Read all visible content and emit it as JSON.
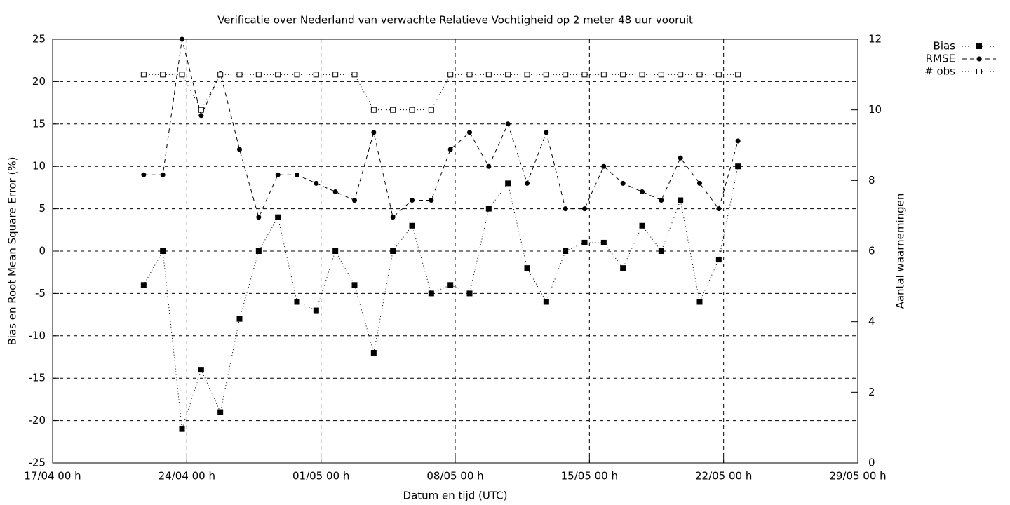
{
  "chart_data": {
    "type": "line",
    "title": "Verificatie over Nederland van verwachte Relatieve Vochtigheid op 2 meter 48 uur vooruit",
    "x_label": "Datum en tijd (UTC)",
    "y_label": "Bias en Root Mean Square Error (%)",
    "y2_label": "Aantal waarnemingen",
    "x": [
      "21/04 18 h",
      "22/04 18 h",
      "23/04 18 h",
      "24/04 18 h",
      "25/04 18 h",
      "26/04 18 h",
      "27/04 18 h",
      "28/04 18 h",
      "29/04 18 h",
      "30/04 18 h",
      "01/05 18 h",
      "02/05 18 h",
      "03/05 18 h",
      "04/05 18 h",
      "05/05 18 h",
      "06/05 18 h",
      "07/05 18 h",
      "08/05 18 h",
      "09/05 18 h",
      "10/05 18 h",
      "11/05 18 h",
      "12/05 18 h",
      "13/05 18 h",
      "14/05 18 h",
      "15/05 18 h",
      "16/05 18 h",
      "17/05 18 h",
      "18/05 18 h",
      "19/05 18 h",
      "20/05 18 h",
      "21/05 18 h",
      "22/05 18 h"
    ],
    "series": [
      {
        "name": "Bias",
        "color": "#000000",
        "dash": "dotted",
        "marker": "square-filled",
        "values": [
          -4,
          0,
          -21,
          -14,
          -19,
          -8,
          0,
          4,
          -6,
          -7,
          0,
          -4,
          -12,
          0,
          3,
          -5,
          -4,
          -5,
          5,
          8,
          -2,
          -6,
          0,
          1,
          1,
          -2,
          3,
          0,
          6,
          -6,
          -1,
          10
        ]
      },
      {
        "name": "RMSE",
        "color": "#000000",
        "dash": "dashed",
        "marker": "circle-filled",
        "values": [
          9,
          9,
          25,
          16,
          21,
          12,
          4,
          9,
          9,
          8,
          7,
          6,
          14,
          4,
          6,
          6,
          12,
          14,
          10,
          15,
          8,
          14,
          5,
          5,
          10,
          8,
          7,
          6,
          11,
          8,
          5,
          13
        ]
      },
      {
        "name": "# obs",
        "color": "#000000",
        "dash": "dotted",
        "marker": "square-open",
        "axis": "y2",
        "values": [
          11,
          11,
          11,
          10,
          11,
          11,
          11,
          11,
          11,
          11,
          11,
          11,
          10,
          10,
          10,
          10,
          11,
          11,
          11,
          11,
          11,
          11,
          11,
          11,
          11,
          11,
          11,
          11,
          11,
          11,
          11,
          11
        ]
      }
    ],
    "xlim": [
      "17/04 00 h",
      "29/05 00 h"
    ],
    "xticks": [
      "17/04 00 h",
      "24/04 00 h",
      "01/05 00 h",
      "08/05 00 h",
      "15/05 00 h",
      "22/05 00 h",
      "29/05 00 h"
    ],
    "ylim": [
      -25,
      25
    ],
    "yticks": [
      -25,
      -20,
      -15,
      -10,
      -5,
      0,
      5,
      10,
      15,
      20,
      25
    ],
    "y2lim": [
      0,
      12
    ],
    "y2ticks": [
      0,
      2,
      4,
      6,
      8,
      10,
      12
    ],
    "grid": true,
    "legend": "top-right"
  }
}
